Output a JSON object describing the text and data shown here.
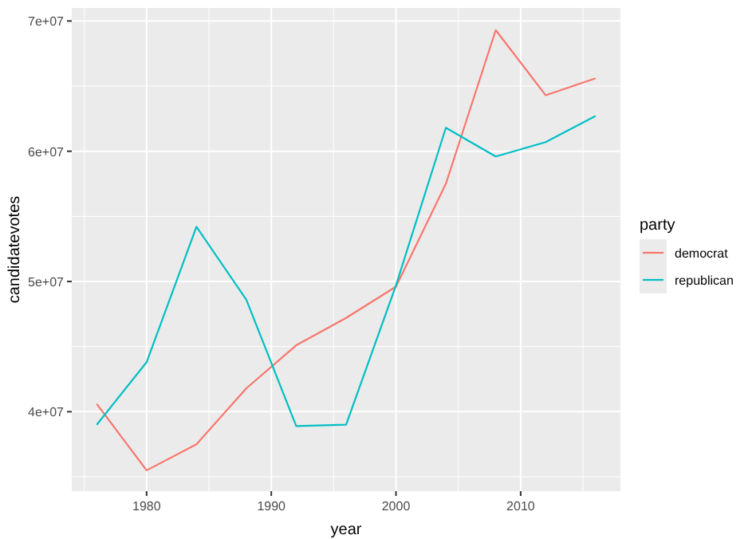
{
  "chart_data": {
    "type": "line",
    "xlabel": "year",
    "ylabel": "candidatevotes",
    "legend_title": "party",
    "legend": "right",
    "grid": true,
    "x": [
      1976,
      1980,
      1984,
      1988,
      1992,
      1996,
      2000,
      2004,
      2008,
      2012,
      2016
    ],
    "xlim": [
      1974,
      2018
    ],
    "xticks": [
      1980,
      1990,
      2000,
      2010
    ],
    "ylim": [
      33900000,
      71000000
    ],
    "yticks": [
      {
        "value": 40000000,
        "label": "4e+07"
      },
      {
        "value": 50000000,
        "label": "5e+07"
      },
      {
        "value": 60000000,
        "label": "6e+07"
      },
      {
        "value": 70000000,
        "label": "7e+07"
      }
    ],
    "series": [
      {
        "name": "democrat",
        "color": "#f8766d",
        "values": [
          40600000,
          35500000,
          37500000,
          41800000,
          45100000,
          47200000,
          49600000,
          57500000,
          69300000,
          64300000,
          65600000
        ]
      },
      {
        "name": "republican",
        "color": "#00bfc4",
        "values": [
          39000000,
          43800000,
          54200000,
          48600000,
          38900000,
          39000000,
          49700000,
          61800000,
          59600000,
          60700000,
          62700000
        ]
      }
    ]
  }
}
